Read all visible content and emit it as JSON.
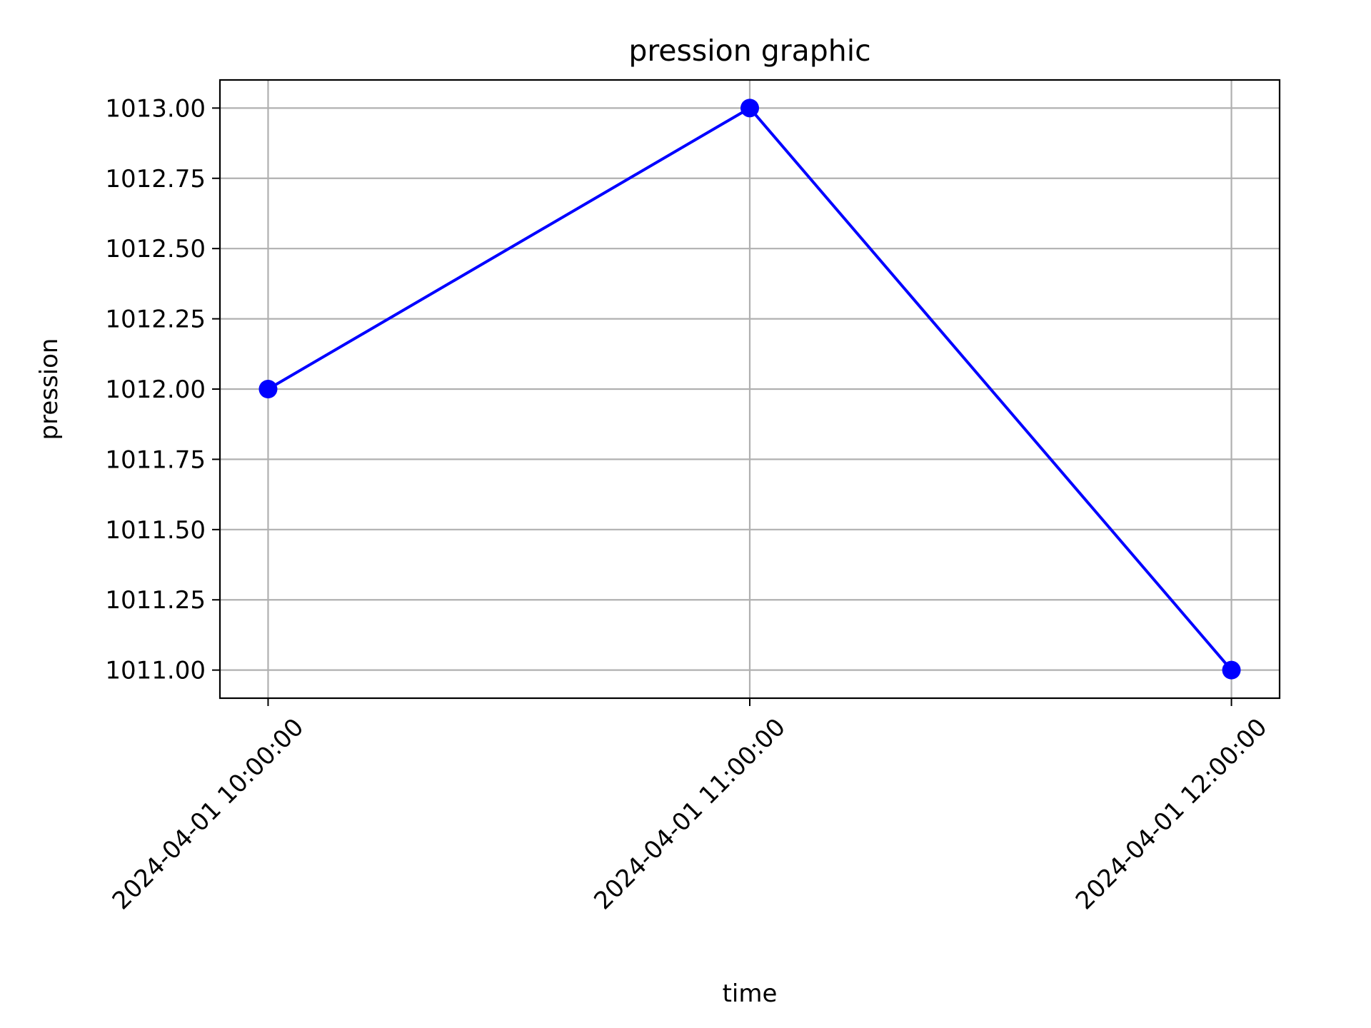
{
  "chart_data": {
    "type": "line",
    "title": "pression graphic",
    "xlabel": "time",
    "ylabel": "pression",
    "x": [
      "2024-04-01 10:00:00",
      "2024-04-01 11:00:00",
      "2024-04-01 12:00:00"
    ],
    "series": [
      {
        "values": [
          1012.0,
          1013.0,
          1011.0
        ],
        "color": "#0000ff",
        "marker": "circle"
      }
    ],
    "yticks": [
      "1011.00",
      "1011.25",
      "1011.50",
      "1011.75",
      "1012.00",
      "1012.25",
      "1012.50",
      "1012.75",
      "1013.00"
    ],
    "ylim": [
      1010.9,
      1013.1
    ],
    "grid": true,
    "xtick_rotation": 45
  }
}
